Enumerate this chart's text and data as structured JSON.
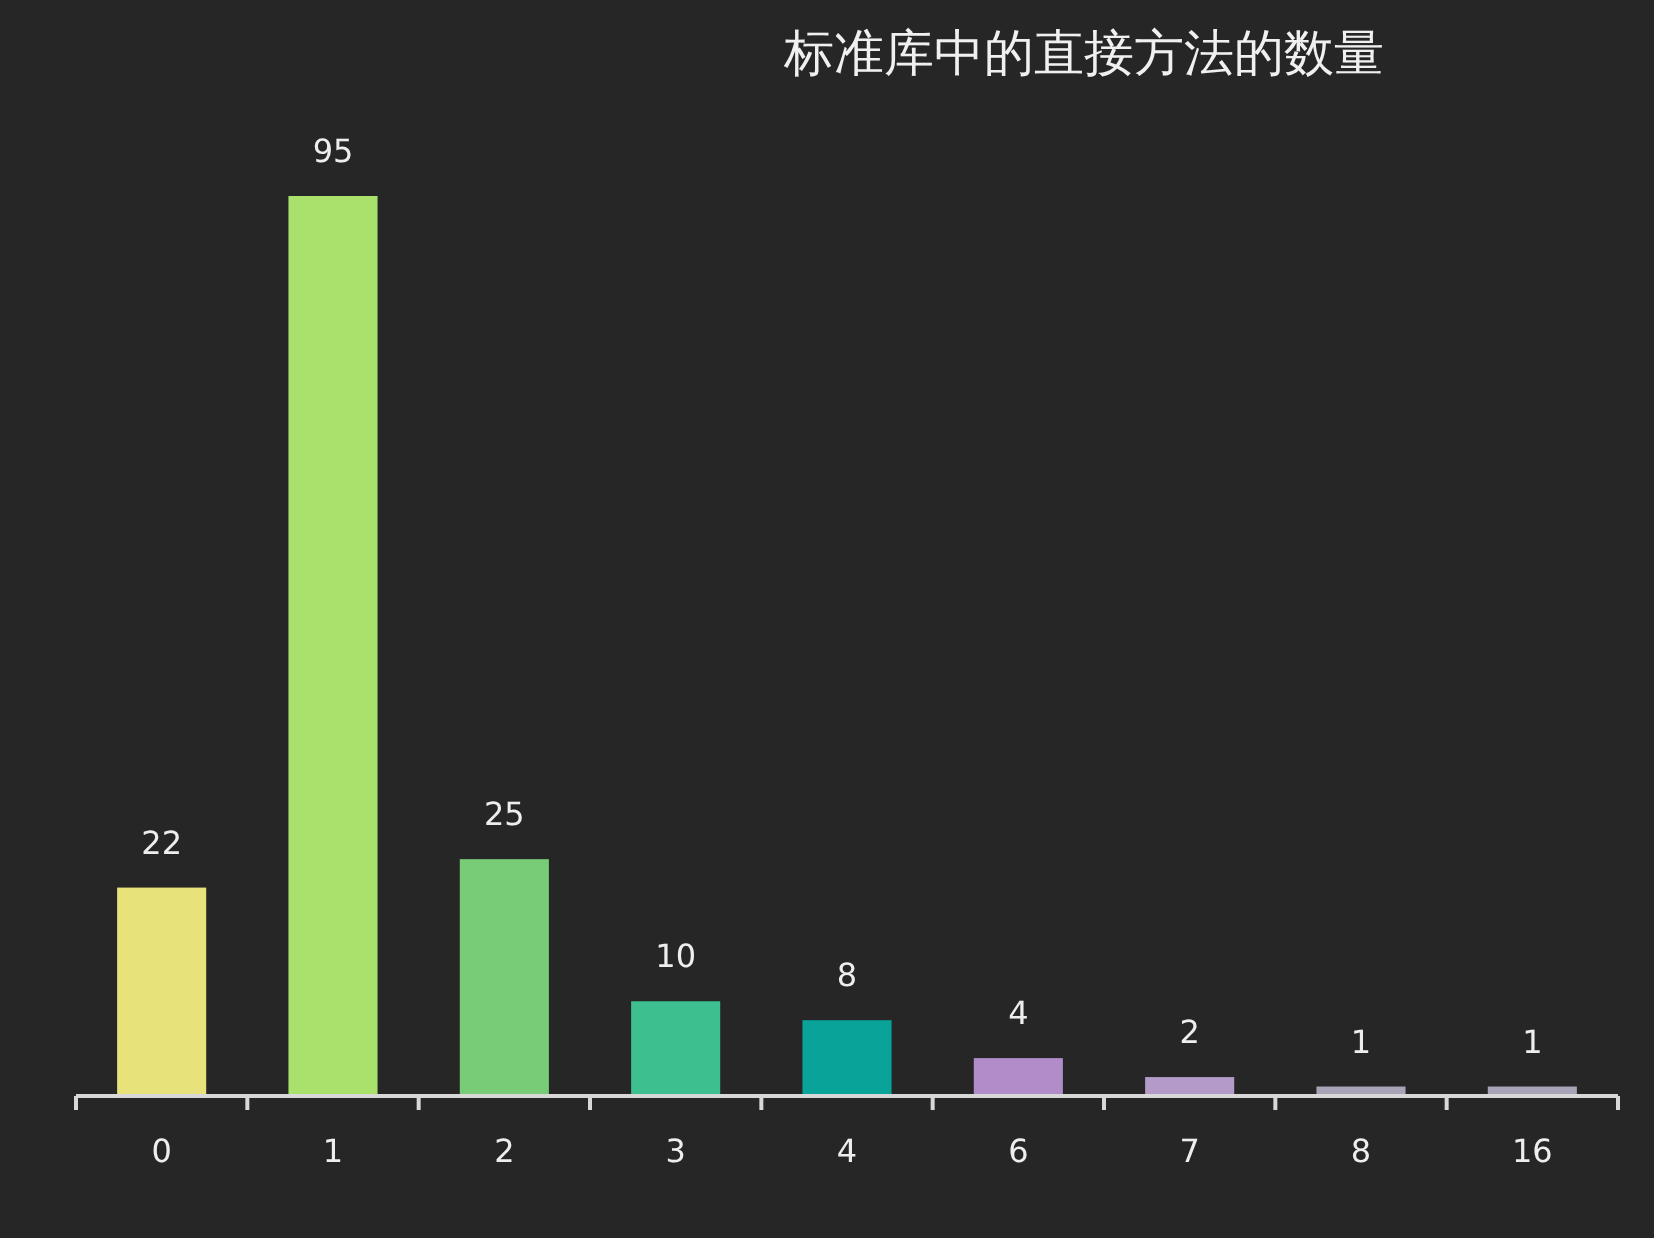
{
  "chart_data": {
    "type": "bar",
    "title": "标准库中的直接方法的数量",
    "categories": [
      "0",
      "1",
      "2",
      "3",
      "4",
      "6",
      "7",
      "8",
      "16"
    ],
    "values": [
      22,
      95,
      25,
      10,
      8,
      4,
      2,
      1,
      1
    ],
    "colors": [
      "#e8e27a",
      "#aae06c",
      "#78cc78",
      "#3dbf90",
      "#0aa39a",
      "#b08cc8",
      "#b49ac8",
      "#a9a3b8",
      "#a9a3b8"
    ],
    "data_labels": true
  }
}
